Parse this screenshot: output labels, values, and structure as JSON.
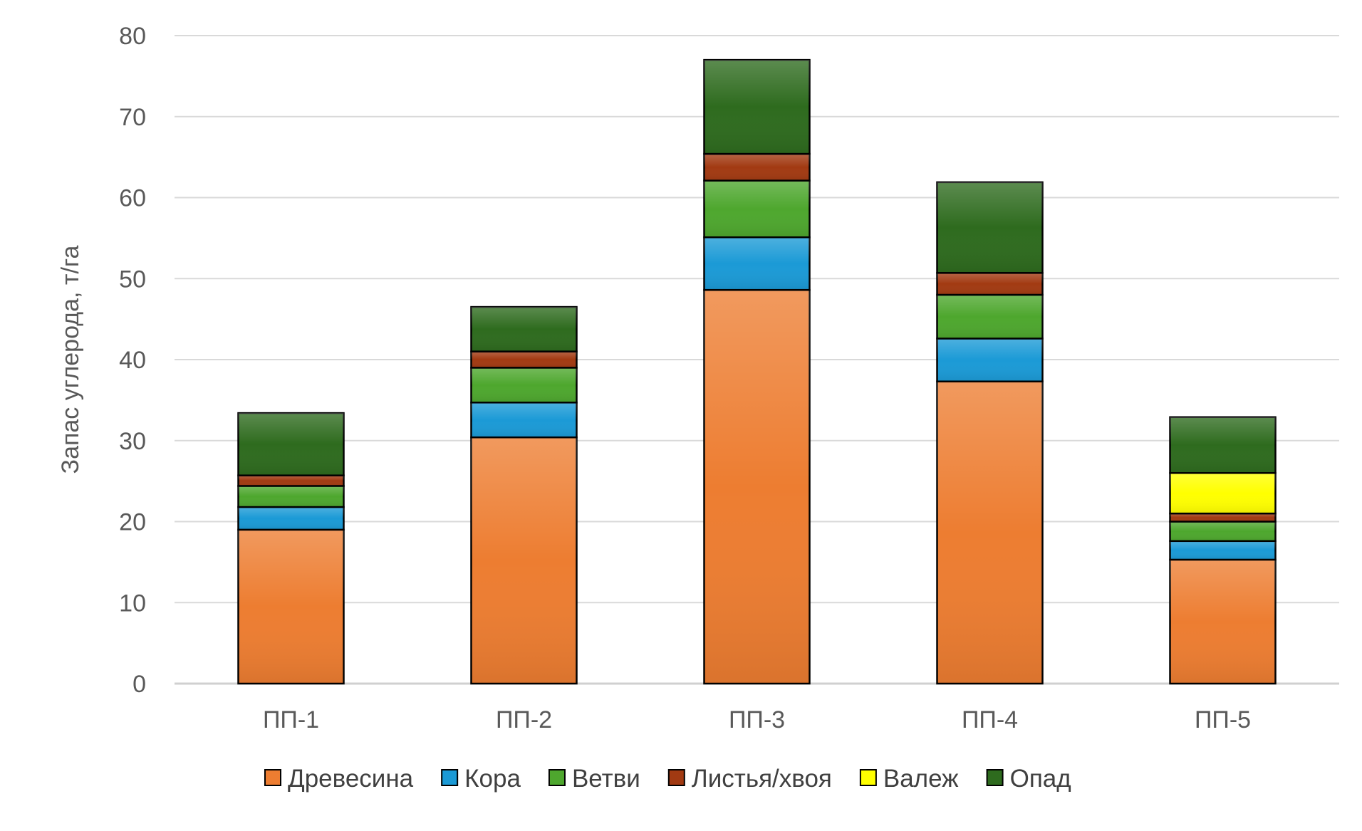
{
  "chart_data": {
    "type": "bar",
    "stacked": true,
    "title": "",
    "xlabel": "",
    "ylabel": "Запас углерода, т/га",
    "ylim": [
      0,
      80
    ],
    "yticks": [
      0,
      10,
      20,
      30,
      40,
      50,
      60,
      70,
      80
    ],
    "grid": true,
    "legend_position": "bottom",
    "categories": [
      "ПП-1",
      "ПП-2",
      "ПП-3",
      "ПП-4",
      "ПП-5"
    ],
    "series": [
      {
        "name": "Древесина",
        "color": "#ED7D31",
        "values": [
          19.0,
          30.4,
          48.6,
          37.3,
          15.3
        ]
      },
      {
        "name": "Кора",
        "color": "#1B9AD6",
        "values": [
          2.8,
          4.3,
          6.5,
          5.3,
          2.3
        ]
      },
      {
        "name": "Ветви",
        "color": "#4EA72E",
        "values": [
          2.6,
          4.3,
          7.0,
          5.4,
          2.4
        ]
      },
      {
        "name": "Листья/хвоя",
        "color": "#A23A12",
        "values": [
          1.3,
          2.0,
          3.3,
          2.7,
          1.0
        ]
      },
      {
        "name": "Валеж",
        "color": "#FFFF00",
        "values": [
          0,
          0,
          0,
          0,
          5.0
        ]
      },
      {
        "name": "Опад",
        "color": "#2E6B1E",
        "values": [
          7.7,
          5.5,
          11.6,
          11.2,
          6.9
        ]
      }
    ]
  }
}
